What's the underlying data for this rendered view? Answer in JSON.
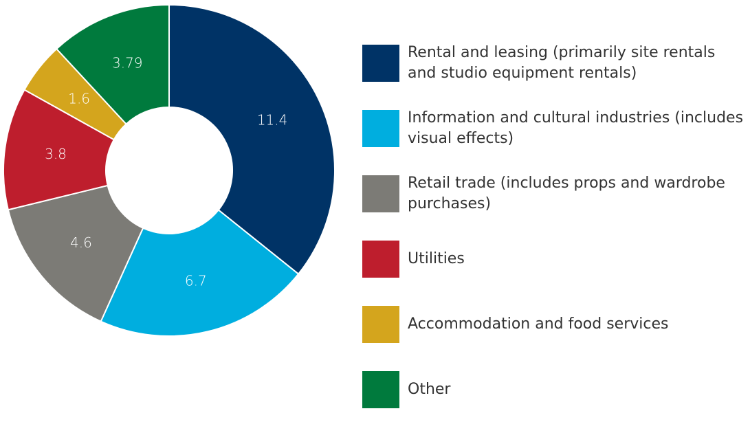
{
  "chart_data": {
    "type": "donut",
    "categories": [
      "Rental and leasing (primarily site rentals and studio equipment rentals)",
      "Information and cultural industries (includes visual effects)",
      "Retail trade (includes props and wardrobe purchases)",
      "Utilities",
      "Accommodation and food services",
      "Other"
    ],
    "values": [
      11.4,
      6.7,
      4.6,
      3.8,
      1.6,
      3.79
    ],
    "colors": [
      "#003366",
      "#00aedf",
      "#7c7b76",
      "#be1e2d",
      "#d4a51d",
      "#007a3d"
    ],
    "legend": "right"
  }
}
